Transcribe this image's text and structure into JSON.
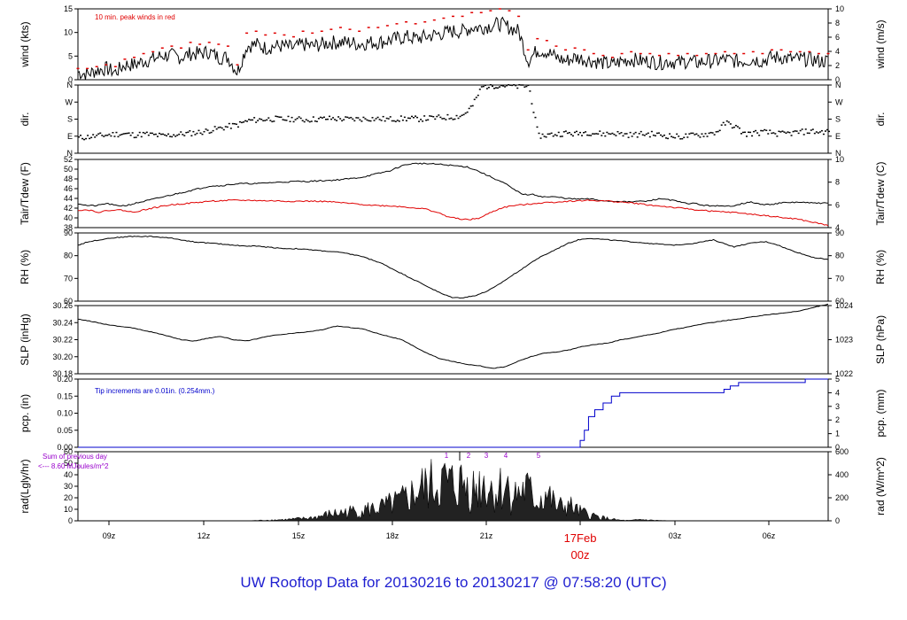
{
  "footer": {
    "title": "UW Rooftop Data for 20130216  to  20130217 @ 07:58:20  (UTC)"
  },
  "colors": {
    "line": "#000000",
    "red": "#e00000",
    "blue": "#0000cc",
    "purple": "#9900cc",
    "title": "#1f1fd0"
  },
  "chart_data": [
    {
      "type": "line",
      "ylabel_left": "wind (kts)",
      "ylabel_right": "wind (m/s)",
      "ylim": [
        0,
        19
      ],
      "yticks_left": [
        "0",
        "5",
        "10",
        "15"
      ],
      "yticks_right": [
        "0",
        "2",
        "4",
        "6",
        "8",
        "10"
      ],
      "annotation": "10 min. peak winds in red",
      "series": [
        {
          "values": [
            2,
            1.5,
            2.5,
            3,
            2,
            4,
            4,
            5,
            5.5,
            6.5,
            6.5,
            6,
            7,
            7,
            7.5,
            6,
            6,
            2,
            9,
            9.5,
            8.5,
            9,
            9,
            8.5,
            9.5,
            9,
            9.5,
            10,
            10,
            10,
            9.5,
            10,
            10,
            10.5,
            11,
            11.5,
            11,
            11.5,
            12,
            12.5,
            13,
            13,
            14,
            14,
            14.5,
            15,
            14,
            13,
            5,
            8,
            7.5,
            6,
            5,
            6,
            5.5,
            5,
            4.5,
            4,
            5,
            5.5,
            5,
            5,
            4.5,
            5,
            4.5,
            5,
            4.5,
            5,
            5,
            5.5,
            5,
            5,
            5.5,
            5,
            6,
            6,
            5.5,
            5.5,
            5.5,
            5,
            5
          ]
        },
        {
          "values": [
            3,
            3,
            3.5,
            4,
            3.5,
            5.5,
            6,
            7,
            7.5,
            8.5,
            9,
            8.5,
            10,
            9.5,
            10,
            9.5,
            9,
            4,
            12.5,
            13,
            12,
            12.5,
            12,
            11.5,
            13,
            12.5,
            13,
            13.5,
            14,
            13.5,
            13,
            14,
            14,
            14.5,
            15,
            15.5,
            15,
            15.5,
            16,
            16.5,
            17,
            17,
            18,
            18,
            18.5,
            19,
            18.5,
            17,
            8,
            11,
            10.5,
            9,
            8,
            8.5,
            8,
            7,
            6.5,
            6,
            7,
            7.5,
            7,
            7,
            6.5,
            7,
            6.5,
            7,
            6.5,
            7,
            7,
            7.5,
            7,
            7,
            7.5,
            7,
            8,
            8,
            7.5,
            7.5,
            7.5,
            7,
            7
          ]
        }
      ]
    },
    {
      "type": "scatter",
      "ylabel_left": "dir.",
      "ylabel_right": "dir.",
      "yticks_left": [
        "N",
        "E",
        "S",
        "W",
        "N"
      ],
      "yticks_right": [
        "N",
        "E",
        "S",
        "W",
        "N"
      ],
      "ylim": [
        0,
        360
      ],
      "values": [
        80,
        85,
        90,
        95,
        100,
        100,
        95,
        100,
        95,
        90,
        95,
        100,
        105,
        110,
        120,
        130,
        140,
        150,
        170,
        175,
        178,
        180,
        178,
        180,
        175,
        178,
        180,
        182,
        180,
        178,
        180,
        182,
        180,
        178,
        180,
        182,
        180,
        182,
        185,
        188,
        190,
        200,
        250,
        350,
        355,
        358,
        355,
        350,
        355,
        90,
        95,
        100,
        105,
        100,
        110,
        105,
        100,
        105,
        100,
        95,
        100,
        100,
        95,
        90,
        85,
        90,
        95,
        100,
        110,
        160,
        140,
        100,
        105,
        110,
        105,
        100,
        105,
        110,
        115,
        110,
        115
      ]
    },
    {
      "type": "line",
      "ylabel_left": "Tair/Tdew (F)",
      "ylabel_right": "Tair/Tdew (C)",
      "ylim": [
        37,
        52.5
      ],
      "yticks_left": [
        "38",
        "40",
        "42",
        "44",
        "46",
        "48",
        "50",
        "52"
      ],
      "yticks_right": [
        "4",
        "6",
        "8",
        "10"
      ],
      "series": [
        {
          "values": [
            42.5,
            42,
            42,
            42.5,
            42,
            42,
            42.5,
            43,
            43.5,
            44,
            44.5,
            45,
            45.5,
            46,
            46.5,
            46.5,
            46.8,
            47,
            47,
            47,
            47.2,
            47.3,
            47.4,
            47.5,
            47.5,
            47.6,
            47.7,
            47.8,
            48,
            48.2,
            48.5,
            49,
            49.5,
            50,
            51,
            51.5,
            51.6,
            51.5,
            51.4,
            51.2,
            51,
            50.8,
            50,
            49,
            48,
            47,
            45.5,
            44.5,
            44.5,
            44,
            44,
            43.8,
            43.5,
            43.5,
            43.5,
            43.2,
            43,
            43,
            42.8,
            43,
            43,
            43.5,
            43.5,
            43,
            42.5,
            42.5,
            42,
            42,
            41.8,
            42,
            42.5,
            42.8,
            42.2,
            42.3,
            42.6,
            42.7,
            42.8,
            42.6,
            42.6,
            42.5
          ]
        },
        {
          "values": [
            41,
            41,
            40.5,
            41,
            41,
            40.5,
            41,
            41.5,
            42,
            42.3,
            42.5,
            42.7,
            43,
            43.1,
            43.2,
            43.2,
            43.2,
            43.1,
            43.1,
            43,
            43,
            43,
            43,
            42.9,
            42.7,
            42.5,
            42.3,
            42.1,
            42,
            41.9,
            41.7,
            41.5,
            41.2,
            40.5,
            39.5,
            39,
            38.8,
            39.2,
            40.5,
            41.5,
            42,
            42.2,
            42.5,
            42.7,
            42.8,
            43,
            43.1,
            43.2,
            43.1,
            43,
            42.8,
            42.6,
            42.3,
            42,
            41.8,
            41.5,
            41.3,
            41,
            40.8,
            40.6,
            40.5,
            40.3,
            40,
            39.8,
            39.5,
            39.2,
            39,
            38.5,
            38,
            37.5
          ]
        }
      ]
    },
    {
      "type": "line",
      "ylabel_left": "RH (%)",
      "ylabel_right": "RH (%)",
      "ylim": [
        58,
        97
      ],
      "yticks_left": [
        "60",
        "70",
        "80",
        "90"
      ],
      "yticks_right": [
        "60",
        "70",
        "80",
        "90"
      ],
      "series": [
        {
          "values": [
            90,
            92,
            93,
            94,
            94.5,
            95,
            95,
            95,
            94.5,
            94,
            93,
            92,
            91.5,
            91,
            90.5,
            90,
            89.5,
            89.5,
            89,
            88.5,
            88,
            88,
            87.5,
            87,
            86.5,
            86,
            85,
            84,
            82,
            80,
            77,
            74,
            71,
            68,
            65,
            62,
            60,
            60,
            61,
            63,
            66,
            70,
            74,
            78,
            82,
            85,
            88,
            91,
            93,
            94,
            93.5,
            93,
            92.5,
            92,
            91.5,
            91,
            90.5,
            90,
            90.5,
            91,
            92,
            93,
            91,
            89,
            90.5,
            91.5,
            92,
            90.5,
            88,
            86,
            84,
            82.5,
            82
          ]
        }
      ]
    },
    {
      "type": "line",
      "ylabel_left": "SLP (inHg)",
      "ylabel_right": "SLP (hPa)",
      "ylim": [
        30.16,
        30.26
      ],
      "yticks_left": [
        "30.18",
        "30.20",
        "30.22",
        "30.24",
        "30.26"
      ],
      "yticks_right": [
        "1022",
        "1023",
        "1024"
      ],
      "series": [
        {
          "values": [
            30.24,
            30.237,
            30.233,
            30.23,
            30.228,
            30.224,
            30.22,
            30.215,
            30.21,
            30.208,
            30.212,
            30.215,
            30.21,
            30.208,
            30.212,
            30.216,
            30.218,
            30.22,
            30.222,
            30.225,
            30.23,
            30.228,
            30.226,
            30.22,
            30.215,
            30.21,
            30.2,
            30.19,
            30.182,
            30.178,
            30.174,
            30.172,
            30.168,
            30.17,
            30.178,
            30.185,
            30.19,
            30.192,
            30.195,
            30.2,
            30.203,
            30.205,
            30.21,
            30.213,
            30.217,
            30.22,
            30.225,
            30.228,
            30.232,
            30.235,
            30.238,
            30.24,
            30.243,
            30.246,
            30.248,
            30.25,
            30.253,
            30.258,
            30.262
          ]
        }
      ]
    },
    {
      "type": "line",
      "ylabel_left": "pcp. (in)",
      "ylabel_right": "pcp. (mm)",
      "ylim": [
        0,
        0.2
      ],
      "yticks_left": [
        "0.00",
        "0.05",
        "0.10",
        "0.15",
        "0.20"
      ],
      "yticks_right": [
        "0",
        "1",
        "2",
        "3",
        "4",
        "5"
      ],
      "annotation": "Tip increments are 0.01in. (0.254mm.)",
      "series": [
        {
          "x": [
            0,
            24,
            24.1,
            24.3,
            24.5,
            24.8,
            25.2,
            25.6,
            26,
            30.8,
            31,
            31.3,
            31.7,
            34.7,
            34.9,
            36
          ],
          "values": [
            0,
            0,
            0.02,
            0.05,
            0.09,
            0.11,
            0.13,
            0.15,
            0.16,
            0.16,
            0.17,
            0.18,
            0.19,
            0.19,
            0.2,
            0.2
          ]
        }
      ]
    },
    {
      "type": "area",
      "ylabel_left": "rad(Lgly/hr)",
      "ylabel_right": "rad (W/m^2)",
      "ylim": [
        0,
        60
      ],
      "yticks_left": [
        "0",
        "10",
        "20",
        "30",
        "40",
        "50",
        "60"
      ],
      "yticks_right": [
        "0",
        "200",
        "400",
        "600"
      ],
      "annotation_lines": [
        "Sum of previous day",
        "<--- 8.60 MJoules/m^2"
      ],
      "markers": [
        "1",
        "2",
        "3",
        "4",
        "5"
      ],
      "series": [
        {
          "values": [
            0,
            0,
            0,
            0,
            0,
            0,
            0,
            0,
            0,
            0,
            0,
            0,
            0,
            0,
            0,
            0,
            0,
            0.5,
            1,
            1.5,
            2,
            3,
            4,
            6,
            10,
            12,
            14,
            16,
            18,
            20,
            25,
            30,
            40,
            50,
            55,
            60,
            55,
            58,
            50,
            60,
            45,
            55,
            40,
            50,
            30,
            42,
            20,
            25,
            15,
            10,
            6,
            3,
            1,
            0.5,
            2,
            1,
            0.5,
            0,
            0,
            0,
            0,
            0,
            0,
            0,
            0,
            0,
            0,
            0,
            0,
            0,
            0,
            0,
            0
          ]
        }
      ]
    }
  ],
  "x_axis": {
    "ticks": [
      "09z",
      "12z",
      "15z",
      "18z",
      "21z",
      "00z",
      "03z",
      "06z"
    ],
    "date_label": "17Feb",
    "date_sub": "00z"
  }
}
